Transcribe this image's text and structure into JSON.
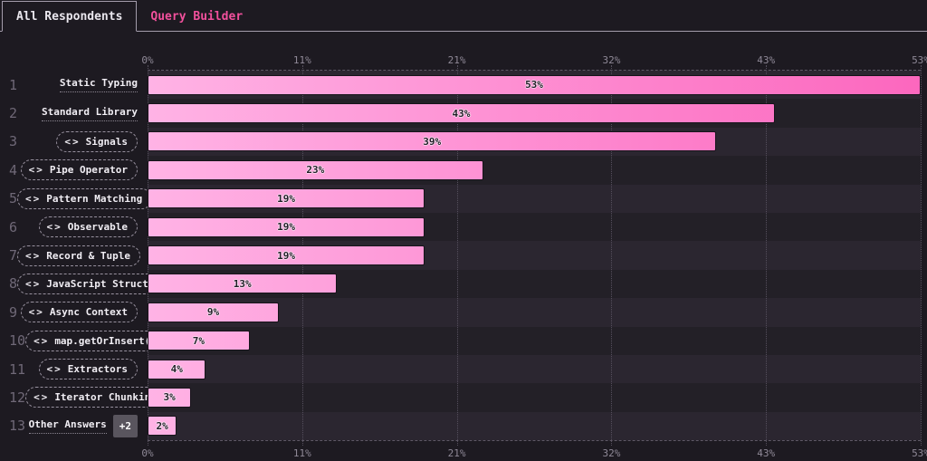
{
  "tabs": {
    "all_respondents": "All Respondents",
    "query_builder": "Query Builder"
  },
  "icons": {
    "code-icon": "<>"
  },
  "colors": {
    "accent_pink": "#f1509c",
    "bar_gradient_start": "#ffb3e5",
    "bar_gradient_end": "#fc67be",
    "stripe_odd": "#2b2630",
    "stripe_even": "#232027",
    "background": "#1d1a21"
  },
  "chart_data": {
    "type": "bar",
    "orientation": "horizontal",
    "unit": "%",
    "max": 53,
    "axis_ticks": [
      "0%",
      "11%",
      "21%",
      "32%",
      "43%",
      "53%"
    ],
    "axis_tick_positions_pct": [
      0,
      20,
      40,
      60,
      80,
      100
    ],
    "grid": true,
    "items": [
      {
        "rank": "1",
        "label": "Static Typing",
        "value": 53,
        "value_label": "53%",
        "label_style": "underline",
        "icon": null
      },
      {
        "rank": "2",
        "label": "Standard Library",
        "value": 43,
        "value_label": "43%",
        "label_style": "underline",
        "icon": null
      },
      {
        "rank": "3",
        "label": "Signals",
        "value": 39,
        "value_label": "39%",
        "label_style": "pill",
        "icon": "code-icon"
      },
      {
        "rank": "4",
        "label": "Pipe Operator",
        "value": 23,
        "value_label": "23%",
        "label_style": "pill",
        "icon": "code-icon"
      },
      {
        "rank": "5",
        "label": "Pattern Matching",
        "value": 19,
        "value_label": "19%",
        "label_style": "pill",
        "icon": "code-icon"
      },
      {
        "rank": "6",
        "label": "Observable",
        "value": 19,
        "value_label": "19%",
        "label_style": "pill",
        "icon": "code-icon"
      },
      {
        "rank": "7",
        "label": "Record & Tuple",
        "value": 19,
        "value_label": "19%",
        "label_style": "pill",
        "icon": "code-icon"
      },
      {
        "rank": "8",
        "label": "JavaScript Structs",
        "value": 13,
        "value_label": "13%",
        "label_style": "pill",
        "icon": "code-icon"
      },
      {
        "rank": "9",
        "label": "Async Context",
        "value": 9,
        "value_label": "9%",
        "label_style": "pill",
        "icon": "code-icon"
      },
      {
        "rank": "10",
        "label": "map.getOrInsert()",
        "value": 7,
        "value_label": "7%",
        "label_style": "pill",
        "icon": "code-icon"
      },
      {
        "rank": "11",
        "label": "Extractors",
        "value": 4,
        "value_label": "4%",
        "label_style": "pill",
        "icon": "code-icon"
      },
      {
        "rank": "12",
        "label": "Iterator Chunking",
        "value": 3,
        "value_label": "3%",
        "label_style": "pill",
        "icon": "code-icon"
      },
      {
        "rank": "13",
        "label": "Other Answers",
        "value": 2,
        "value_label": "2%",
        "label_style": "underline",
        "icon": null,
        "badge": "+2"
      }
    ]
  }
}
